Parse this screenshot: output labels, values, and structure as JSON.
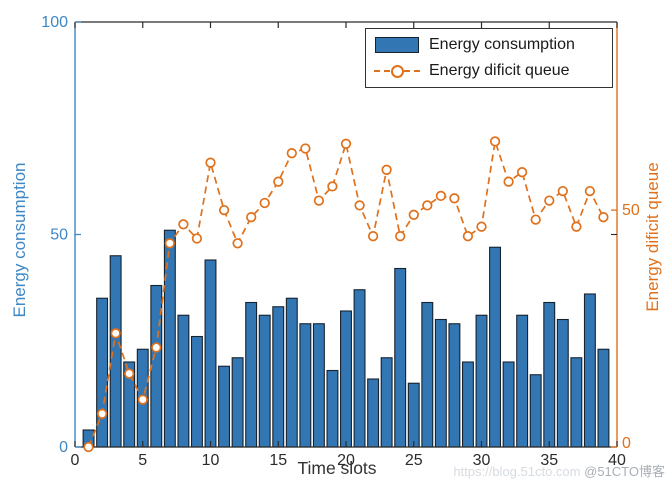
{
  "chart_data": {
    "type": "bar",
    "title": "",
    "xlabel": "Time slots",
    "ylabel_left": "Energy consumption",
    "ylabel_right": "Energy dificit queue",
    "x": [
      1,
      2,
      3,
      4,
      5,
      6,
      7,
      8,
      9,
      10,
      11,
      12,
      13,
      14,
      15,
      16,
      17,
      18,
      19,
      20,
      21,
      22,
      23,
      24,
      25,
      26,
      27,
      28,
      29,
      30,
      31,
      32,
      33,
      34,
      35,
      36,
      37,
      38,
      39
    ],
    "series": [
      {
        "name": "Energy consumption",
        "type": "bar",
        "axis": "left",
        "color": "#3277b3",
        "edge_color": "#16222e",
        "values": [
          4,
          35,
          45,
          20,
          23,
          38,
          51,
          31,
          26,
          44,
          19,
          21,
          34,
          31,
          33,
          35,
          29,
          29,
          18,
          32,
          37,
          16,
          21,
          42,
          15,
          34,
          30,
          29,
          20,
          31,
          47,
          20,
          31,
          17,
          34,
          30,
          21,
          36,
          23
        ]
      },
      {
        "name": "Energy dificit queue",
        "type": "line",
        "axis": "right",
        "color": "#e0711c",
        "line_style": "dashed",
        "marker": "open-circle",
        "values": [
          0,
          7,
          24,
          15.5,
          10,
          21,
          43,
          47,
          44,
          60,
          50,
          43,
          48.5,
          51.5,
          56,
          62,
          63,
          52,
          55,
          64,
          51,
          44.5,
          58.5,
          44.5,
          49,
          51,
          53,
          52.5,
          44.5,
          46.5,
          64.5,
          56,
          58,
          48,
          52,
          54,
          46.5,
          54,
          48.5
        ]
      }
    ],
    "x_lim": [
      0,
      40
    ],
    "x_ticks": [
      0,
      5,
      10,
      15,
      20,
      25,
      30,
      35,
      40
    ],
    "y_left_lim": [
      0,
      100
    ],
    "y_left_ticks": [
      0,
      50,
      100
    ],
    "y_right_lim": [
      0,
      89.7
    ],
    "y_right_ticks": [
      0,
      50
    ],
    "grid": false,
    "legend": {
      "position": "top-right"
    },
    "axis_colors": {
      "left": "#3f87c5",
      "right": "#e0711c",
      "frame": "#2b2b2b",
      "tick_label": "#2b2b2b"
    }
  },
  "watermark": {
    "url_text": "https://blog.51cto.com",
    "handle": "@51CTO博客"
  }
}
